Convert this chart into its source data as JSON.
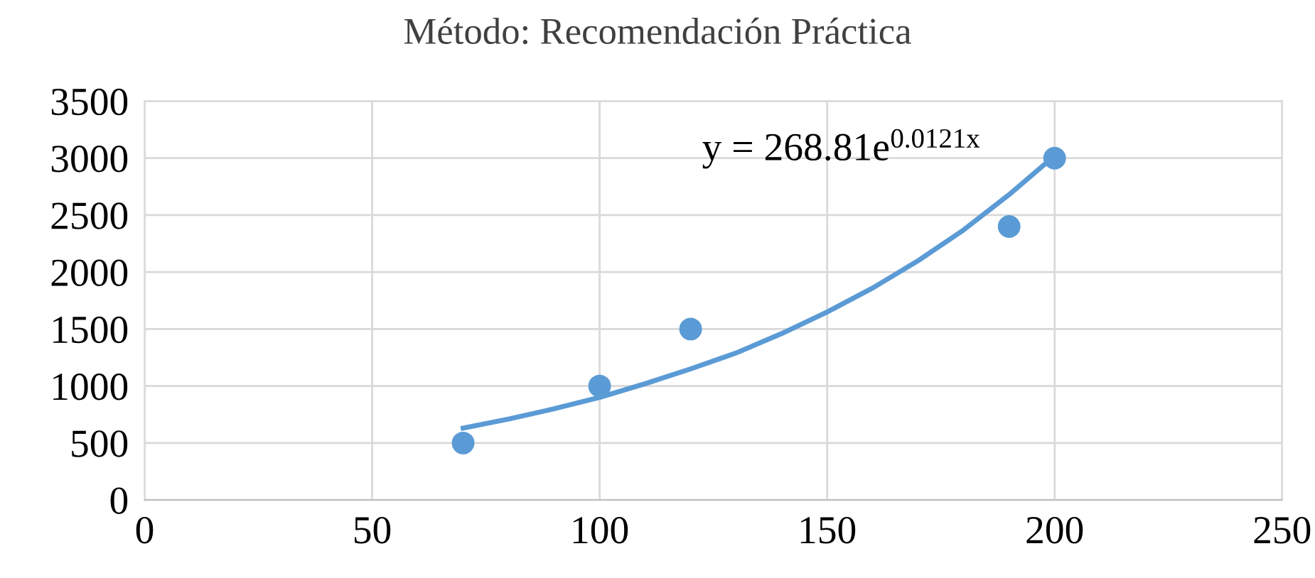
{
  "chart_data": {
    "type": "scatter",
    "title": "Método: Recomendación Práctica",
    "xlim": [
      0,
      250
    ],
    "xticks": [
      0,
      50,
      100,
      150,
      200,
      250
    ],
    "ylim": [
      0,
      3500
    ],
    "yticks": [
      0,
      500,
      1000,
      1500,
      2000,
      2500,
      3000,
      3500
    ],
    "grid": true,
    "marker": "circle",
    "series": [
      {
        "color": "#5b9bd5",
        "x": [
          70,
          100,
          120,
          190,
          200
        ],
        "values": [
          500,
          1000,
          1500,
          2400,
          3000
        ]
      },
      {
        "type": "line",
        "color": "#5b9bd5",
        "marker": "none",
        "line_style": "solid",
        "x": [
          70,
          80,
          90,
          100,
          110,
          120,
          130,
          140,
          150,
          160,
          170,
          180,
          190,
          200
        ],
        "values": [
          630,
          710,
          800,
          900,
          1020,
          1150,
          1290,
          1460,
          1650,
          1860,
          2100,
          2370,
          2680,
          3020
        ]
      }
    ],
    "annotations": [
      "y = 268.81e$^{0.0121x}$"
    ]
  }
}
